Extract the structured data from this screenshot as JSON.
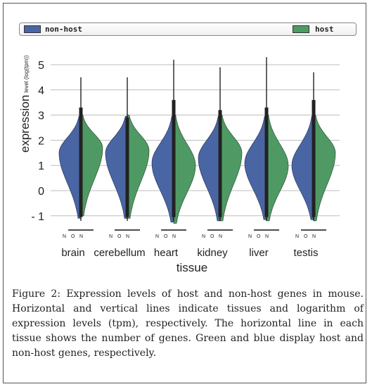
{
  "legend": {
    "items": [
      {
        "label": "non-host",
        "color": "#4a65a3"
      },
      {
        "label": "host",
        "color": "#4f9a64"
      }
    ]
  },
  "chart_data": {
    "type": "violin",
    "title": "",
    "xlabel": "tissue",
    "ylabel_main": "expression",
    "ylabel_sub": "level (log(tpm))",
    "ylim": [
      -1.3,
      5.3
    ],
    "yticks": [
      5,
      4,
      3,
      2,
      1,
      0,
      -1
    ],
    "ytick_labels": [
      "5",
      "4",
      "3",
      "2",
      "1",
      "0",
      "- 1"
    ],
    "grid": true,
    "legend_position": "top",
    "categories": [
      "brain",
      "cerebellum",
      "heart",
      "kidney",
      "liver",
      "testis"
    ],
    "group_ticks": [
      "N",
      "O",
      "N"
    ],
    "series": [
      {
        "name": "non-host",
        "color": "#4a65a3",
        "side": "left",
        "medians": [
          1.5,
          1.5,
          1.1,
          1.3,
          1.1,
          1.0
        ],
        "bottoms": [
          -1.1,
          -1.1,
          -1.25,
          -1.2,
          -1.15,
          -1.15
        ]
      },
      {
        "name": "host",
        "color": "#4f9a64",
        "side": "right",
        "medians": [
          1.7,
          1.6,
          1.0,
          1.5,
          1.0,
          1.5
        ],
        "bottoms": [
          -1.0,
          -1.1,
          -1.3,
          -1.2,
          -1.2,
          -1.2
        ]
      }
    ],
    "max_values": [
      4.5,
      4.5,
      5.2,
      4.9,
      5.3,
      4.7
    ],
    "box_tops": [
      3.3,
      2.9,
      3.6,
      3.2,
      3.3,
      3.6
    ]
  },
  "caption": "Figure 2: Expression levels of host and non-host genes in mouse. Horizontal and vertical lines indicate tissues and logarithm of expression levels (tpm), respectively. The horizontal line in each tissue shows the number of genes. Green and blue display host and non-host genes, respectively."
}
